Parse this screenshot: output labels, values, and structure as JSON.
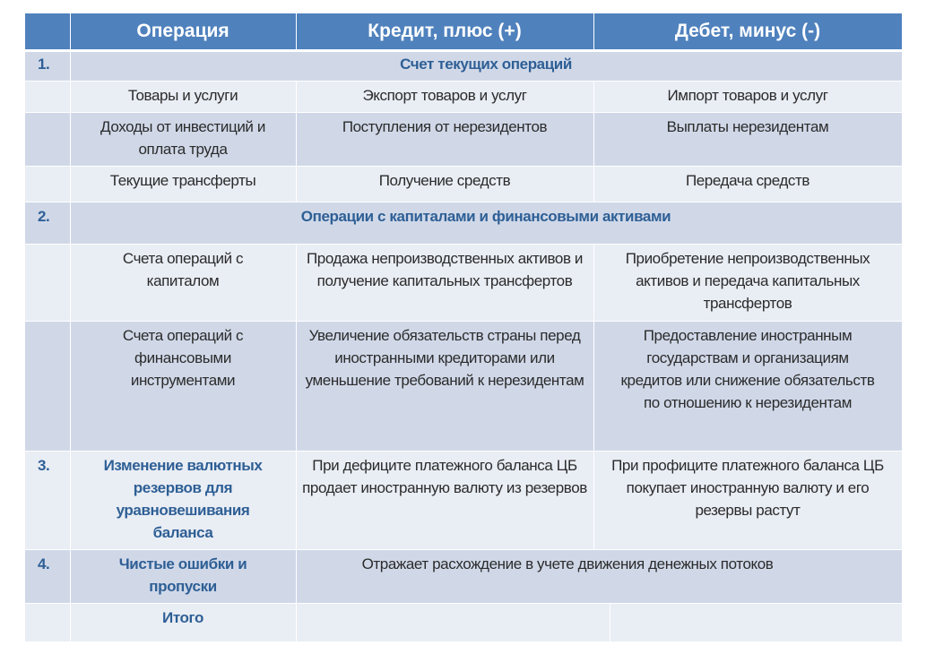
{
  "header": {
    "num": "",
    "operation": "Операция",
    "credit": "Кредит, плюс (+)",
    "debit": "Дебет, минус (-)"
  },
  "rows": [
    {
      "num": "1.",
      "section": "Счет текущих операций"
    },
    {
      "operation": "Товары и услуги",
      "credit": "Экспорт товаров и услуг",
      "debit": "Импорт товаров и услуг"
    },
    {
      "operation": "Доходы от инвестиций и оплата труда",
      "credit": "Поступления от нерезидентов",
      "debit": "Выплаты нерезидентам"
    },
    {
      "operation": "Текущие трансферты",
      "credit": "Получение средств",
      "debit": "Передача средств"
    },
    {
      "num": "2.",
      "section": "Операции с  капиталами и финансовыми активами"
    },
    {
      "operation": "Счета операций с капиталом",
      "credit": "Продажа непроизводственных активов и получение капитальных трансфертов",
      "debit": "Приобретение непроизводственных активов и передача капитальных трансфертов"
    },
    {
      "operation": "Счета операций с финансовыми инструментами",
      "credit": "Увеличение обязательств страны перед иностранными кредиторами или уменьшение требований к нерезидентам",
      "debit": "Предоставление иностранным государствам и организациям кредитов или снижение обязательств по отношению к нерезидентам"
    },
    {
      "num": "3.",
      "operation": "Изменение валютных резервов для уравновешивания баланса",
      "credit": "При дефиците платежного баланса ЦБ продает иностранную валюту из резервов",
      "debit": "При профиците платежного баланса ЦБ покупает иностранную валюту и его  резервы растут"
    },
    {
      "num": "4.",
      "operation": "Чистые ошибки и пропуски",
      "merged": "Отражает расхождение в учете движения денежных потоков"
    },
    {
      "operation": "Итого",
      "credit": "",
      "debit": ""
    }
  ],
  "colors": {
    "header": "#4F81BD",
    "row_dark": "#D0D8E8",
    "row_light": "#E9EDF4",
    "accent_text": "#2E5F95"
  }
}
